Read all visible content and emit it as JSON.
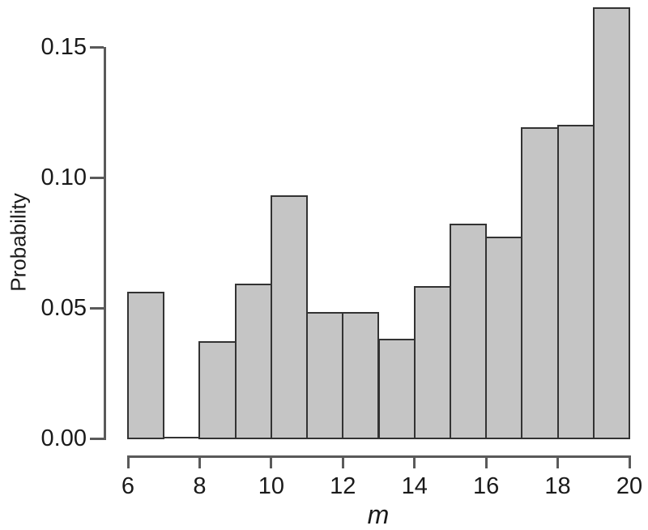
{
  "chart_data": {
    "type": "bar",
    "title": "",
    "xlabel": "m",
    "ylabel": "Probability",
    "grid": false,
    "legend": null,
    "xlim": [
      6,
      20
    ],
    "ylim": [
      0,
      0.15
    ],
    "x_tick_labels": [
      "6",
      "8",
      "10",
      "12",
      "14",
      "16",
      "18",
      "20"
    ],
    "x_tick_values": [
      6,
      8,
      10,
      12,
      14,
      16,
      18,
      20
    ],
    "y_tick_labels": [
      "0.00",
      "0.05",
      "0.10",
      "0.15"
    ],
    "y_tick_values": [
      0.0,
      0.05,
      0.1,
      0.15
    ],
    "bins": [
      {
        "x0": 6,
        "x1": 7,
        "p": 0.056
      },
      {
        "x0": 7,
        "x1": 8,
        "p": 0.0
      },
      {
        "x0": 8,
        "x1": 9,
        "p": 0.037
      },
      {
        "x0": 9,
        "x1": 10,
        "p": 0.059
      },
      {
        "x0": 10,
        "x1": 11,
        "p": 0.093
      },
      {
        "x0": 11,
        "x1": 12,
        "p": 0.048
      },
      {
        "x0": 12,
        "x1": 13,
        "p": 0.048
      },
      {
        "x0": 13,
        "x1": 14,
        "p": 0.038
      },
      {
        "x0": 14,
        "x1": 15,
        "p": 0.058
      },
      {
        "x0": 15,
        "x1": 16,
        "p": 0.082
      },
      {
        "x0": 16,
        "x1": 17,
        "p": 0.077
      },
      {
        "x0": 17,
        "x1": 18,
        "p": 0.119
      },
      {
        "x0": 18,
        "x1": 19,
        "p": 0.12
      },
      {
        "x0": 19,
        "x1": 20,
        "p": 0.165
      }
    ],
    "colors": {
      "bar_fill": "#c5c5c5",
      "bar_border": "#333333",
      "axis": "#5a5a5a",
      "text": "#1a1a1a",
      "background": "#ffffff"
    }
  }
}
